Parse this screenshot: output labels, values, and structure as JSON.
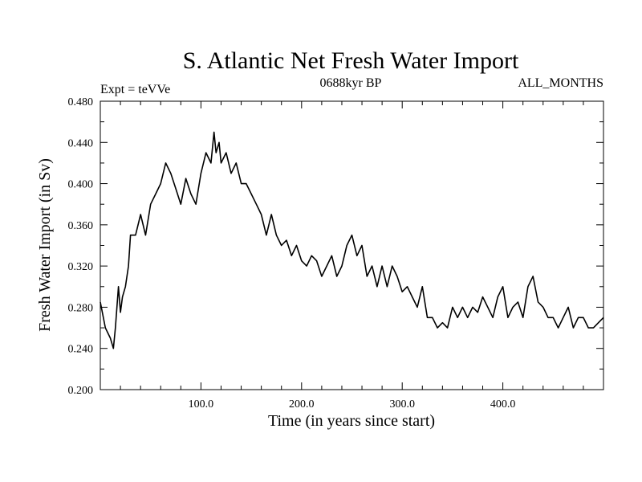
{
  "chart_data": {
    "type": "line",
    "title": "S. Atlantic Net Fresh Water Import",
    "annotations": {
      "left": "Expt = teVVe",
      "center": "0688kyr BP",
      "right": "ALL_MONTHS"
    },
    "xlabel": "Time (in years since start)",
    "ylabel": "Fresh Water Import (in Sv)",
    "xlim": [
      0,
      500
    ],
    "ylim": [
      0.2,
      0.48
    ],
    "x_ticks": [
      100,
      200,
      300,
      400
    ],
    "x_tick_labels": [
      "100.0",
      "200.0",
      "300.0",
      "400.0"
    ],
    "y_ticks": [
      0.2,
      0.24,
      0.28,
      0.32,
      0.36,
      0.4,
      0.44,
      0.48
    ],
    "y_tick_labels": [
      "0.200",
      "0.240",
      "0.280",
      "0.320",
      "0.360",
      "0.400",
      "0.440",
      "0.480"
    ],
    "grid": false,
    "color": "#000000",
    "series": [
      {
        "x": [
          0,
          5,
          10,
          13,
          15,
          18,
          20,
          22,
          25,
          28,
          30,
          35,
          40,
          45,
          50,
          55,
          60,
          65,
          70,
          75,
          80,
          85,
          90,
          95,
          100,
          105,
          110,
          113,
          115,
          118,
          120,
          125,
          130,
          135,
          140,
          145,
          150,
          155,
          160,
          165,
          170,
          175,
          180,
          185,
          190,
          195,
          200,
          205,
          210,
          215,
          220,
          225,
          230,
          235,
          240,
          245,
          250,
          255,
          260,
          265,
          270,
          275,
          280,
          285,
          290,
          295,
          300,
          305,
          310,
          315,
          320,
          325,
          330,
          335,
          340,
          345,
          350,
          355,
          360,
          365,
          370,
          375,
          380,
          385,
          390,
          395,
          400,
          405,
          410,
          415,
          420,
          425,
          430,
          435,
          440,
          445,
          450,
          455,
          460,
          465,
          470,
          475,
          480,
          485,
          490,
          495,
          500
        ],
        "y": [
          0.285,
          0.26,
          0.25,
          0.24,
          0.26,
          0.3,
          0.275,
          0.29,
          0.3,
          0.32,
          0.35,
          0.35,
          0.37,
          0.35,
          0.38,
          0.39,
          0.4,
          0.42,
          0.41,
          0.395,
          0.38,
          0.405,
          0.39,
          0.38,
          0.41,
          0.43,
          0.42,
          0.45,
          0.43,
          0.44,
          0.42,
          0.43,
          0.41,
          0.42,
          0.4,
          0.4,
          0.39,
          0.38,
          0.37,
          0.35,
          0.37,
          0.35,
          0.34,
          0.345,
          0.33,
          0.34,
          0.325,
          0.32,
          0.33,
          0.325,
          0.31,
          0.32,
          0.33,
          0.31,
          0.32,
          0.34,
          0.35,
          0.33,
          0.34,
          0.31,
          0.32,
          0.3,
          0.32,
          0.3,
          0.32,
          0.31,
          0.295,
          0.3,
          0.29,
          0.28,
          0.3,
          0.27,
          0.27,
          0.26,
          0.265,
          0.26,
          0.28,
          0.27,
          0.28,
          0.27,
          0.28,
          0.275,
          0.29,
          0.28,
          0.27,
          0.29,
          0.3,
          0.27,
          0.28,
          0.285,
          0.27,
          0.3,
          0.31,
          0.285,
          0.28,
          0.27,
          0.27,
          0.26,
          0.27,
          0.28,
          0.26,
          0.27,
          0.27,
          0.26,
          0.26,
          0.265,
          0.27
        ]
      }
    ]
  }
}
